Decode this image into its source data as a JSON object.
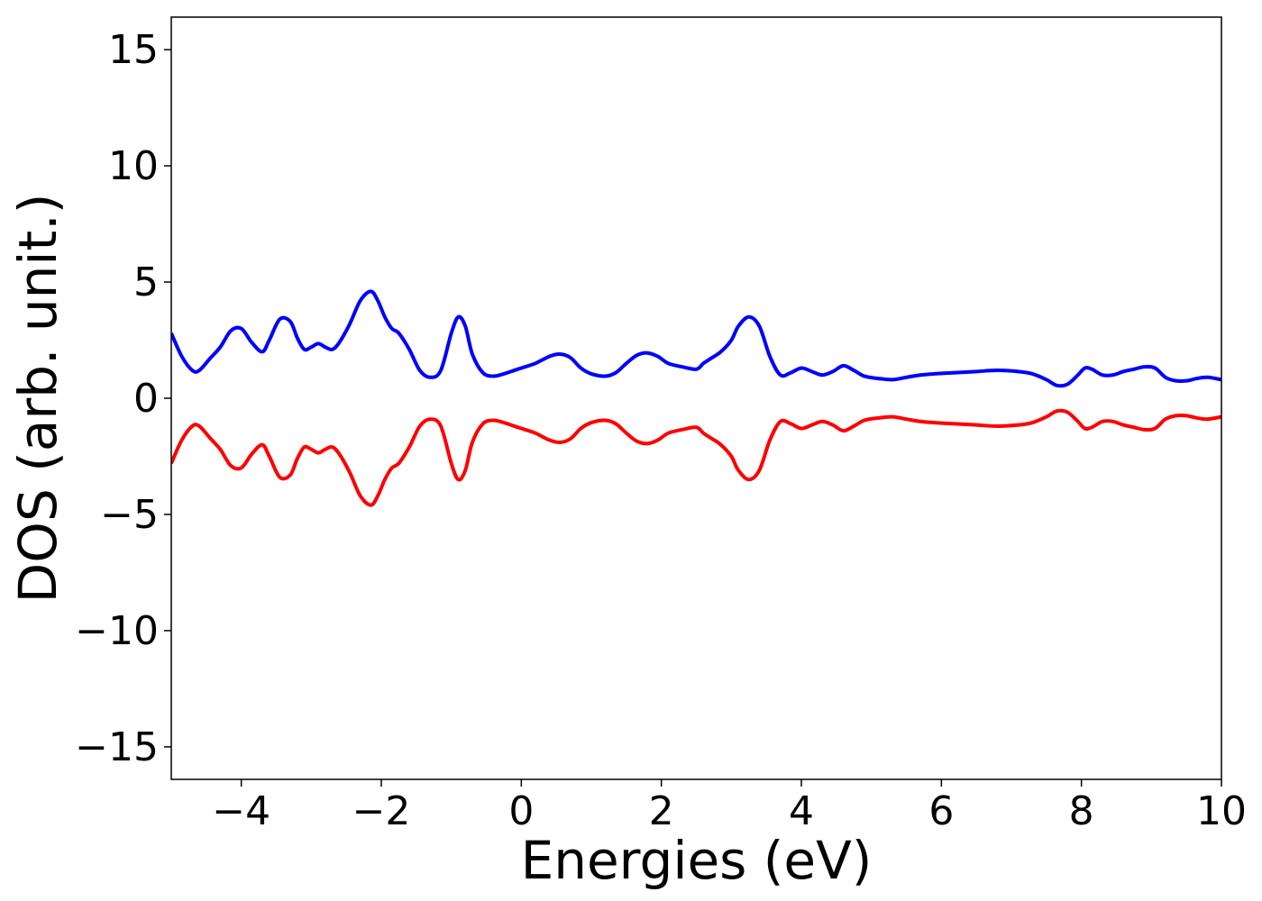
{
  "chart_data": {
    "type": "line",
    "title": "",
    "xlabel": "Energies (eV)",
    "ylabel": "DOS (arb. unit.)",
    "xlim": [
      -5,
      10
    ],
    "ylim": [
      -16.4,
      16.4
    ],
    "xticks": [
      -4,
      -2,
      0,
      2,
      4,
      6,
      8,
      10
    ],
    "xtick_labels": [
      "−4",
      "−2",
      "0",
      "2",
      "4",
      "6",
      "8",
      "10"
    ],
    "yticks": [
      15,
      10,
      5,
      0,
      -5,
      -10,
      -15
    ],
    "ytick_labels": [
      "15",
      "10",
      "5",
      "0",
      "−5",
      "−10",
      "−15"
    ],
    "grid": false,
    "legend": "none",
    "series": [
      {
        "color": "#0000ff",
        "x": [
          -5.0,
          -4.85,
          -4.7,
          -4.6,
          -4.45,
          -4.3,
          -4.15,
          -4.0,
          -3.85,
          -3.7,
          -3.6,
          -3.45,
          -3.3,
          -3.2,
          -3.1,
          -3.0,
          -2.9,
          -2.8,
          -2.7,
          -2.6,
          -2.45,
          -2.3,
          -2.15,
          -2.05,
          -1.95,
          -1.85,
          -1.75,
          -1.6,
          -1.45,
          -1.3,
          -1.15,
          -1.0,
          -0.9,
          -0.8,
          -0.7,
          -0.55,
          -0.4,
          -0.25,
          -0.1,
          0.0,
          0.2,
          0.4,
          0.55,
          0.7,
          0.85,
          1.0,
          1.2,
          1.35,
          1.5,
          1.65,
          1.8,
          1.95,
          2.1,
          2.3,
          2.5,
          2.6,
          2.7,
          2.85,
          3.0,
          3.1,
          3.25,
          3.4,
          3.55,
          3.7,
          3.85,
          4.0,
          4.15,
          4.3,
          4.45,
          4.6,
          4.75,
          4.9,
          5.1,
          5.3,
          5.5,
          5.7,
          5.9,
          6.2,
          6.5,
          6.8,
          7.1,
          7.3,
          7.5,
          7.65,
          7.8,
          7.95,
          8.05,
          8.15,
          8.3,
          8.45,
          8.6,
          8.75,
          8.9,
          9.05,
          9.2,
          9.35,
          9.5,
          9.65,
          9.8,
          10.0
        ],
        "y": [
          2.8,
          1.8,
          1.2,
          1.2,
          1.7,
          2.2,
          2.9,
          3.0,
          2.4,
          2.0,
          2.5,
          3.4,
          3.3,
          2.6,
          2.1,
          2.2,
          2.35,
          2.2,
          2.1,
          2.4,
          3.2,
          4.2,
          4.6,
          4.2,
          3.5,
          3.0,
          2.8,
          2.1,
          1.2,
          0.9,
          1.2,
          2.8,
          3.5,
          3.1,
          1.9,
          1.1,
          0.95,
          1.05,
          1.2,
          1.3,
          1.5,
          1.8,
          1.9,
          1.75,
          1.3,
          1.05,
          0.95,
          1.1,
          1.5,
          1.85,
          1.95,
          1.8,
          1.5,
          1.35,
          1.25,
          1.5,
          1.7,
          2.0,
          2.5,
          3.1,
          3.5,
          3.1,
          1.8,
          1.0,
          1.1,
          1.3,
          1.15,
          1.0,
          1.15,
          1.4,
          1.2,
          0.95,
          0.85,
          0.8,
          0.9,
          1.0,
          1.05,
          1.1,
          1.15,
          1.2,
          1.15,
          1.05,
          0.8,
          0.55,
          0.6,
          1.0,
          1.3,
          1.25,
          1.0,
          1.0,
          1.15,
          1.25,
          1.35,
          1.3,
          0.9,
          0.75,
          0.75,
          0.85,
          0.9,
          0.8
        ]
      },
      {
        "color": "#ff0000",
        "x": [
          -5.0,
          -4.85,
          -4.7,
          -4.6,
          -4.45,
          -4.3,
          -4.15,
          -4.0,
          -3.85,
          -3.7,
          -3.6,
          -3.45,
          -3.3,
          -3.2,
          -3.1,
          -3.0,
          -2.9,
          -2.8,
          -2.7,
          -2.6,
          -2.45,
          -2.3,
          -2.15,
          -2.05,
          -1.95,
          -1.85,
          -1.75,
          -1.6,
          -1.45,
          -1.3,
          -1.15,
          -1.0,
          -0.9,
          -0.8,
          -0.7,
          -0.55,
          -0.4,
          -0.25,
          -0.1,
          0.0,
          0.2,
          0.4,
          0.55,
          0.7,
          0.85,
          1.0,
          1.2,
          1.35,
          1.5,
          1.65,
          1.8,
          1.95,
          2.1,
          2.3,
          2.5,
          2.6,
          2.7,
          2.85,
          3.0,
          3.1,
          3.25,
          3.4,
          3.55,
          3.7,
          3.85,
          4.0,
          4.15,
          4.3,
          4.45,
          4.6,
          4.75,
          4.9,
          5.1,
          5.3,
          5.5,
          5.7,
          5.9,
          6.2,
          6.5,
          6.8,
          7.1,
          7.3,
          7.5,
          7.65,
          7.8,
          7.95,
          8.05,
          8.15,
          8.3,
          8.45,
          8.6,
          8.75,
          8.9,
          9.05,
          9.2,
          9.35,
          9.5,
          9.65,
          9.8,
          10.0
        ],
        "y": [
          -2.8,
          -1.8,
          -1.2,
          -1.2,
          -1.7,
          -2.2,
          -2.9,
          -3.0,
          -2.4,
          -2.0,
          -2.5,
          -3.4,
          -3.3,
          -2.6,
          -2.1,
          -2.2,
          -2.35,
          -2.2,
          -2.1,
          -2.4,
          -3.2,
          -4.2,
          -4.6,
          -4.2,
          -3.5,
          -3.0,
          -2.8,
          -2.1,
          -1.2,
          -0.9,
          -1.2,
          -2.8,
          -3.5,
          -3.1,
          -1.9,
          -1.1,
          -0.95,
          -1.05,
          -1.2,
          -1.3,
          -1.5,
          -1.8,
          -1.9,
          -1.75,
          -1.3,
          -1.05,
          -0.95,
          -1.1,
          -1.5,
          -1.85,
          -1.95,
          -1.8,
          -1.5,
          -1.35,
          -1.25,
          -1.5,
          -1.7,
          -2.0,
          -2.5,
          -3.1,
          -3.5,
          -3.1,
          -1.8,
          -1.0,
          -1.1,
          -1.3,
          -1.15,
          -1.0,
          -1.15,
          -1.4,
          -1.2,
          -0.95,
          -0.85,
          -0.8,
          -0.9,
          -1.0,
          -1.05,
          -1.1,
          -1.15,
          -1.2,
          -1.15,
          -1.05,
          -0.8,
          -0.55,
          -0.6,
          -1.0,
          -1.3,
          -1.25,
          -1.0,
          -1.0,
          -1.15,
          -1.25,
          -1.35,
          -1.3,
          -0.9,
          -0.75,
          -0.75,
          -0.85,
          -0.9,
          -0.8
        ]
      }
    ]
  }
}
